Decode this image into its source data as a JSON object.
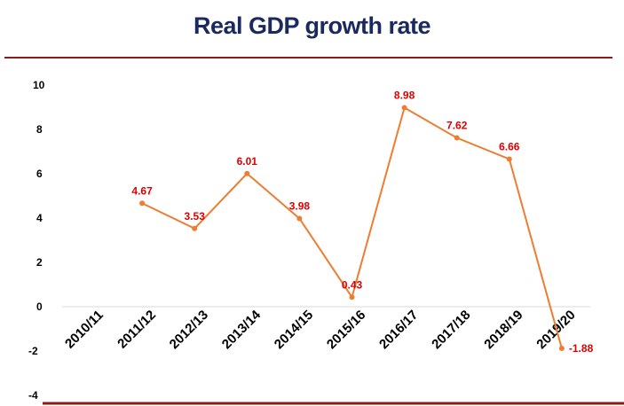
{
  "chart_data": {
    "type": "line",
    "title": "Real GDP growth rate",
    "categories": [
      "2010/11",
      "2011/12",
      "2012/13",
      "2013/14",
      "2014/15",
      "2015/16",
      "2016/17",
      "2017/18",
      "2018/19",
      "2019/20"
    ],
    "series": [
      {
        "values": [
          null,
          4.67,
          3.53,
          6.01,
          3.98,
          0.43,
          8.98,
          7.62,
          6.66,
          -1.88
        ]
      }
    ],
    "data_labels": [
      "",
      "4.67",
      "3.53",
      "6.01",
      "3.98",
      "0.43",
      "8.98",
      "7.62",
      "6.66",
      "-1.88"
    ],
    "yticks": [
      10,
      8,
      6,
      4,
      2,
      0,
      -2,
      -4
    ],
    "ylim": [
      -4,
      10
    ],
    "grid": false,
    "legend": "none",
    "colors": {
      "line": "#ed7d31",
      "label": "#e00000",
      "title": "#1a2a5e",
      "rule": "#8b1a1a",
      "zero_line": "#d9d9d9"
    }
  }
}
